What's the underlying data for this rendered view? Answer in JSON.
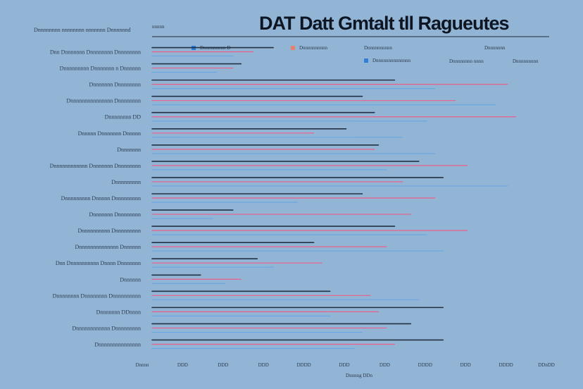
{
  "chart_data": {
    "type": "line",
    "title": "DAT Datt Gmtalt tll Ragueutes",
    "header_text": "Dnnnnnnnn nnnnnnnn nnnnnnn Dnnnnnnd",
    "header_tick": "nnnnn",
    "xlabel": "Dnnnng DDn",
    "x_ticks": [
      "Dnnnn",
      "DDD",
      "DDD",
      "DDD",
      "DDDD",
      "DDD",
      "DDD",
      "DDDD",
      "DDD",
      "DDDD",
      "DDnDD"
    ],
    "legend": [
      {
        "label": "Dnnnnnnnnn D",
        "color": "#2f7fd6"
      },
      {
        "label": "Dnnnnnnnnnn",
        "color": "#e9806c"
      },
      {
        "label": "Dnnnnnnnnnn",
        "color": "#2a3a50"
      },
      {
        "label": "Dnnnnnnn",
        "color": "#2a3a50"
      },
      {
        "label": "Dnnnnnnnnnnnnnn",
        "color": "#2f7fd6"
      },
      {
        "label": "Dnnnnnnnn nnnn",
        "color": "#2a3a50"
      },
      {
        "label": "Dnnnnnnnnn",
        "color": "#2a3a50"
      }
    ],
    "rows": [
      {
        "label": "Dnn Dnnnnnnn Dnnnnnnnn Dnnnnnnnn",
        "values": [
          30,
          25,
          20
        ]
      },
      {
        "label": "Dnnnnnnnnn Dnnnnnnn n Dnnnnnn",
        "values": [
          22,
          20,
          16
        ]
      },
      {
        "label": "Dnnnnnnn Dnnnnnnnn",
        "values": [
          60,
          88,
          70
        ]
      },
      {
        "label": "Dnnnnnnnnnnnnnnn Dnnnnnnnn",
        "values": [
          52,
          75,
          85
        ]
      },
      {
        "label": "Dnnnnnnnn DD",
        "values": [
          55,
          90,
          68
        ]
      },
      {
        "label": "Dnnnnn Dnnnnnnn Dnnnnn",
        "values": [
          48,
          40,
          62
        ]
      },
      {
        "label": "Dnnnnnnn",
        "values": [
          56,
          55,
          70
        ]
      },
      {
        "label": "Dnnnnnnnnnnnn Dnnnnnnn Dnnnnnnnn",
        "values": [
          66,
          78,
          58
        ]
      },
      {
        "label": "Dnnnnnnnnn",
        "values": [
          72,
          62,
          88
        ]
      },
      {
        "label": "Dnnnnnnnnn Dnnnnn Dnnnnnnnnn",
        "values": [
          52,
          70,
          36
        ]
      },
      {
        "label": "Dnnnnnnn Dnnnnnnnn",
        "values": [
          20,
          64,
          15
        ]
      },
      {
        "label": "Dnnnnnnnnnn Dnnnnnnnnn",
        "values": [
          60,
          78,
          68
        ]
      },
      {
        "label": "Dnnnnnnnnnnnnnn Dnnnnnn",
        "values": [
          40,
          58,
          72
        ]
      },
      {
        "label": "Dnn Dnnnnnnnnnn Dnnnn Dnnnnnnn",
        "values": [
          26,
          42,
          30
        ]
      },
      {
        "label": "Dnnnnnn",
        "values": [
          12,
          22,
          18
        ]
      },
      {
        "label": "Dnnnnnnnn Dnnnnnnnn Dnnnnnnnnnn",
        "values": [
          44,
          54,
          66
        ]
      },
      {
        "label": "Dnnnnnnn DDnnnn",
        "values": [
          72,
          56,
          44
        ]
      },
      {
        "label": "Dnnnnnnnnnnnn Dnnnnnnnnn",
        "values": [
          64,
          58,
          52
        ]
      },
      {
        "label": "Dnnnnnnnnnnnnnnn",
        "values": [
          72,
          60,
          50
        ]
      }
    ],
    "series_colors": [
      "#1d2a3d",
      "#f05a86",
      "#5aa0e8"
    ],
    "xlim": [
      0,
      100
    ]
  }
}
